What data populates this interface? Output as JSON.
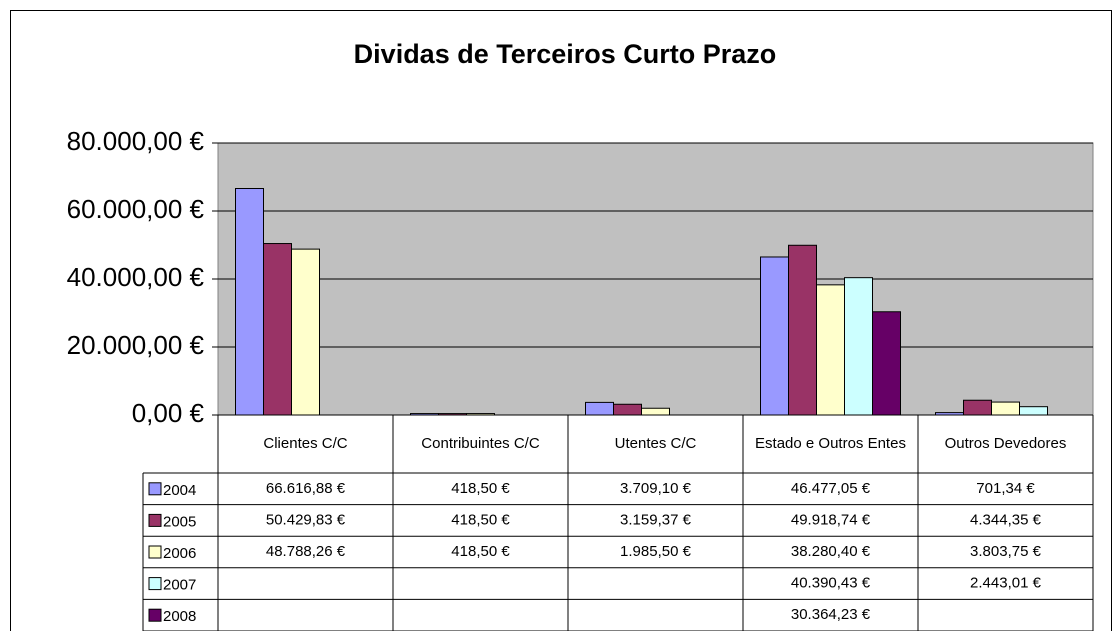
{
  "chart_data": {
    "type": "bar",
    "title": "Dividas de Terceiros Curto Prazo",
    "categories": [
      "Clientes C/C",
      "Contribuintes C/C",
      "Utentes C/C",
      "Estado e Outros Entes",
      "Outros Devedores"
    ],
    "series": [
      {
        "name": "2004",
        "color": "#9999ff",
        "values": [
          66616.88,
          418.5,
          3709.1,
          46477.05,
          701.34
        ],
        "value_labels": [
          "66.616,88 €",
          "418,50 €",
          "3.709,10 €",
          "46.477,05 €",
          "701,34 €"
        ]
      },
      {
        "name": "2005",
        "color": "#993366",
        "values": [
          50429.83,
          418.5,
          3159.37,
          49918.74,
          4344.35
        ],
        "value_labels": [
          "50.429,83 €",
          "418,50 €",
          "3.159,37 €",
          "49.918,74 €",
          "4.344,35 €"
        ]
      },
      {
        "name": "2006",
        "color": "#ffffcc",
        "values": [
          48788.26,
          418.5,
          1985.5,
          38280.4,
          3803.75
        ],
        "value_labels": [
          "48.788,26 €",
          "418,50 €",
          "1.985,50 €",
          "38.280,40 €",
          "3.803,75 €"
        ]
      },
      {
        "name": "2007",
        "color": "#ccffff",
        "values": [
          null,
          null,
          null,
          40390.43,
          2443.01
        ],
        "value_labels": [
          null,
          null,
          null,
          "40.390,43 €",
          "2.443,01 €"
        ]
      },
      {
        "name": "2008",
        "color": "#660066",
        "values": [
          null,
          null,
          null,
          30364.23,
          null
        ],
        "value_labels": [
          null,
          null,
          null,
          "30.364,23 €",
          null
        ]
      }
    ],
    "ylim": [
      0,
      80000
    ],
    "yticks": [
      {
        "value": 0,
        "label": "0,00 €"
      },
      {
        "value": 20000,
        "label": "20.000,00 €"
      },
      {
        "value": 40000,
        "label": "40.000,00 €"
      },
      {
        "value": 60000,
        "label": "60.000,00 €"
      },
      {
        "value": 80000,
        "label": "80.000,00 €"
      }
    ],
    "grid": true,
    "plot_background": "#c0c0c0"
  }
}
